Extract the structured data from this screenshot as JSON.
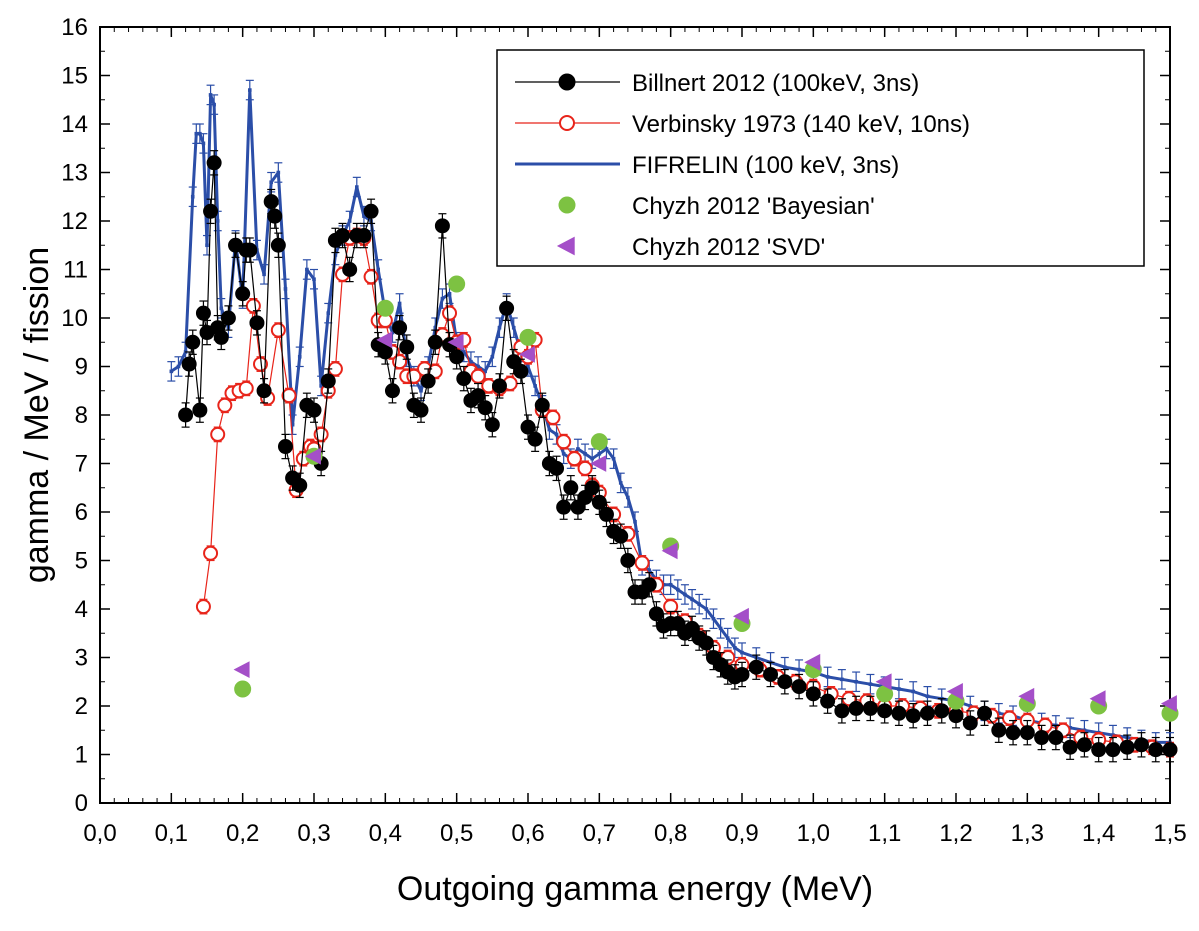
{
  "chart_data": {
    "type": "scatter",
    "xlabel": "Outgoing gamma energy (MeV)",
    "ylabel": "gamma / MeV / fission",
    "xlim": [
      0.0,
      1.5
    ],
    "ylim": [
      0,
      16
    ],
    "xticks": [
      "0,0",
      "0,1",
      "0,2",
      "0,3",
      "0,4",
      "0,5",
      "0,6",
      "0,7",
      "0,8",
      "0,9",
      "1,0",
      "1,1",
      "1,2",
      "1,3",
      "1,4",
      "1,5"
    ],
    "xtick_values": [
      0.0,
      0.1,
      0.2,
      0.3,
      0.4,
      0.5,
      0.6,
      0.7,
      0.8,
      0.9,
      1.0,
      1.1,
      1.2,
      1.3,
      1.4,
      1.5
    ],
    "yticks": [
      "0",
      "1",
      "2",
      "3",
      "4",
      "5",
      "6",
      "7",
      "8",
      "9",
      "10",
      "11",
      "12",
      "13",
      "14",
      "15",
      "16"
    ],
    "ytick_values": [
      0,
      1,
      2,
      3,
      4,
      5,
      6,
      7,
      8,
      9,
      10,
      11,
      12,
      13,
      14,
      15,
      16
    ],
    "legend_position": "top-right",
    "series": [
      {
        "name": "Billnert 2012  (100keV, 3ns)",
        "color": "#000000",
        "marker": "filled-circle",
        "line": true,
        "x": [
          0.12,
          0.125,
          0.13,
          0.14,
          0.145,
          0.15,
          0.155,
          0.16,
          0.165,
          0.17,
          0.18,
          0.19,
          0.2,
          0.205,
          0.21,
          0.22,
          0.23,
          0.24,
          0.245,
          0.25,
          0.26,
          0.27,
          0.28,
          0.29,
          0.3,
          0.31,
          0.32,
          0.33,
          0.34,
          0.35,
          0.36,
          0.37,
          0.38,
          0.39,
          0.4,
          0.41,
          0.42,
          0.43,
          0.44,
          0.45,
          0.46,
          0.47,
          0.48,
          0.49,
          0.5,
          0.51,
          0.52,
          0.53,
          0.54,
          0.55,
          0.56,
          0.57,
          0.58,
          0.59,
          0.6,
          0.61,
          0.62,
          0.63,
          0.64,
          0.65,
          0.66,
          0.67,
          0.68,
          0.69,
          0.7,
          0.71,
          0.72,
          0.73,
          0.74,
          0.75,
          0.76,
          0.77,
          0.78,
          0.79,
          0.8,
          0.81,
          0.82,
          0.83,
          0.84,
          0.85,
          0.86,
          0.87,
          0.88,
          0.89,
          0.9,
          0.92,
          0.94,
          0.96,
          0.98,
          1.0,
          1.02,
          1.04,
          1.06,
          1.08,
          1.1,
          1.12,
          1.14,
          1.16,
          1.18,
          1.2,
          1.22,
          1.24,
          1.26,
          1.28,
          1.3,
          1.32,
          1.34,
          1.36,
          1.38,
          1.4,
          1.42,
          1.44,
          1.46,
          1.48,
          1.5
        ],
        "y": [
          8.0,
          9.05,
          9.5,
          8.1,
          10.1,
          9.7,
          12.2,
          13.2,
          9.8,
          9.6,
          10.0,
          11.5,
          10.5,
          11.4,
          11.4,
          9.9,
          8.5,
          12.4,
          12.1,
          11.5,
          7.35,
          6.7,
          6.55,
          8.2,
          8.1,
          7.0,
          8.7,
          11.6,
          11.7,
          11.0,
          11.7,
          11.7,
          12.2,
          9.45,
          9.3,
          8.5,
          9.8,
          9.4,
          8.2,
          8.1,
          8.7,
          9.5,
          11.9,
          9.45,
          9.2,
          8.75,
          8.3,
          8.4,
          8.15,
          7.8,
          8.6,
          10.2,
          9.1,
          8.9,
          7.75,
          7.5,
          8.2,
          7.0,
          6.9,
          6.1,
          6.5,
          6.1,
          6.3,
          6.5,
          6.2,
          5.95,
          5.6,
          5.5,
          5.0,
          4.35,
          4.35,
          4.5,
          3.9,
          3.65,
          3.7,
          3.7,
          3.5,
          3.6,
          3.4,
          3.3,
          3.0,
          2.85,
          2.7,
          2.6,
          2.65,
          2.8,
          2.65,
          2.5,
          2.4,
          2.25,
          2.1,
          1.9,
          1.95,
          1.95,
          1.9,
          1.85,
          1.8,
          1.85,
          1.9,
          1.8,
          1.65,
          1.85,
          1.5,
          1.45,
          1.45,
          1.35,
          1.35,
          1.15,
          1.2,
          1.1,
          1.1,
          1.15,
          1.2,
          1.1,
          1.1
        ]
      },
      {
        "name": "Verbinsky 1973  (140 keV, 10ns)",
        "color": "#e8241a",
        "marker": "open-circle",
        "line": true,
        "x": [
          0.145,
          0.155,
          0.165,
          0.175,
          0.185,
          0.195,
          0.205,
          0.215,
          0.225,
          0.235,
          0.25,
          0.265,
          0.275,
          0.285,
          0.295,
          0.3,
          0.31,
          0.32,
          0.33,
          0.34,
          0.35,
          0.36,
          0.37,
          0.38,
          0.39,
          0.4,
          0.41,
          0.42,
          0.43,
          0.44,
          0.455,
          0.47,
          0.48,
          0.49,
          0.5,
          0.51,
          0.52,
          0.53,
          0.545,
          0.56,
          0.575,
          0.59,
          0.6,
          0.61,
          0.62,
          0.635,
          0.65,
          0.665,
          0.68,
          0.69,
          0.7,
          0.72,
          0.74,
          0.76,
          0.78,
          0.8,
          0.82,
          0.84,
          0.86,
          0.88,
          0.9,
          0.925,
          0.95,
          0.975,
          1.0,
          1.025,
          1.05,
          1.075,
          1.1,
          1.125,
          1.15,
          1.175,
          1.2,
          1.225,
          1.25,
          1.275,
          1.3,
          1.325,
          1.35,
          1.375,
          1.4,
          1.425,
          1.45,
          1.475,
          1.5
        ],
        "y": [
          4.05,
          5.15,
          7.6,
          8.2,
          8.45,
          8.5,
          8.55,
          10.25,
          9.05,
          8.35,
          9.75,
          8.4,
          6.45,
          7.1,
          7.35,
          7.3,
          7.6,
          8.5,
          8.95,
          10.9,
          11.65,
          11.7,
          11.65,
          10.85,
          9.95,
          9.95,
          9.3,
          9.1,
          8.8,
          8.8,
          8.95,
          8.9,
          9.65,
          10.1,
          9.5,
          9.55,
          8.9,
          8.8,
          8.6,
          8.55,
          8.65,
          9.4,
          9.2,
          9.55,
          8.1,
          7.95,
          7.45,
          7.1,
          6.9,
          6.55,
          6.4,
          5.95,
          5.55,
          4.95,
          4.5,
          4.05,
          3.75,
          3.45,
          3.2,
          3.0,
          2.85,
          2.75,
          2.6,
          2.5,
          2.4,
          2.25,
          2.15,
          2.1,
          2.0,
          2.0,
          1.95,
          1.9,
          1.9,
          1.85,
          1.8,
          1.75,
          1.7,
          1.6,
          1.5,
          1.35,
          1.3,
          1.25,
          1.2,
          1.15,
          1.1
        ]
      },
      {
        "name": "FIFRELIN (100 keV, 3ns)",
        "color": "#2b4ea8",
        "marker": "none",
        "line": true,
        "x": [
          0.1,
          0.11,
          0.12,
          0.13,
          0.135,
          0.14,
          0.145,
          0.15,
          0.155,
          0.16,
          0.165,
          0.17,
          0.18,
          0.19,
          0.2,
          0.21,
          0.22,
          0.23,
          0.24,
          0.25,
          0.26,
          0.27,
          0.28,
          0.29,
          0.3,
          0.31,
          0.32,
          0.33,
          0.34,
          0.35,
          0.36,
          0.37,
          0.38,
          0.39,
          0.4,
          0.41,
          0.42,
          0.43,
          0.44,
          0.45,
          0.46,
          0.47,
          0.48,
          0.49,
          0.5,
          0.51,
          0.52,
          0.53,
          0.54,
          0.55,
          0.56,
          0.57,
          0.58,
          0.59,
          0.6,
          0.61,
          0.62,
          0.63,
          0.64,
          0.65,
          0.66,
          0.67,
          0.68,
          0.69,
          0.7,
          0.71,
          0.72,
          0.73,
          0.74,
          0.75,
          0.76,
          0.77,
          0.78,
          0.79,
          0.8,
          0.81,
          0.82,
          0.83,
          0.84,
          0.85,
          0.86,
          0.87,
          0.88,
          0.89,
          0.9,
          0.92,
          0.94,
          0.96,
          0.98,
          1.0,
          1.02,
          1.04,
          1.06,
          1.08,
          1.1,
          1.12,
          1.14,
          1.16,
          1.18,
          1.2,
          1.22,
          1.24,
          1.26,
          1.28,
          1.3,
          1.32,
          1.34,
          1.36,
          1.38,
          1.4,
          1.42,
          1.44,
          1.46,
          1.48,
          1.5
        ],
        "y": [
          8.9,
          9.0,
          9.3,
          12.5,
          13.8,
          13.8,
          13.6,
          11.5,
          14.6,
          14.4,
          12.0,
          10.2,
          9.8,
          11.6,
          10.4,
          14.7,
          11.4,
          10.9,
          12.8,
          13.0,
          10.6,
          7.8,
          9.2,
          11.0,
          10.8,
          8.6,
          10.1,
          11.3,
          11.7,
          12.0,
          12.7,
          12.1,
          12.0,
          11.0,
          10.1,
          9.7,
          10.3,
          9.2,
          8.8,
          8.5,
          9.0,
          9.8,
          10.4,
          10.5,
          9.5,
          9.3,
          9.1,
          9.0,
          8.9,
          9.2,
          9.8,
          10.3,
          9.8,
          9.3,
          9.0,
          8.6,
          8.2,
          7.7,
          7.6,
          7.2,
          7.1,
          7.3,
          7.2,
          7.1,
          7.2,
          7.3,
          7.1,
          6.6,
          6.3,
          5.8,
          4.9,
          4.8,
          4.6,
          4.5,
          4.5,
          4.4,
          4.3,
          4.2,
          4.1,
          4.0,
          3.8,
          3.6,
          3.4,
          3.2,
          3.1,
          3.0,
          2.9,
          2.8,
          2.75,
          2.7,
          2.6,
          2.55,
          2.5,
          2.45,
          2.4,
          2.35,
          2.3,
          2.2,
          2.15,
          2.1,
          2.0,
          1.9,
          1.85,
          1.8,
          1.7,
          1.65,
          1.6,
          1.55,
          1.5,
          1.45,
          1.4,
          1.35,
          1.3,
          1.25,
          1.25
        ]
      },
      {
        "name": "Chyzh 2012 'Bayesian'",
        "color": "#7dc242",
        "marker": "filled-circle",
        "line": false,
        "x": [
          0.2,
          0.3,
          0.4,
          0.5,
          0.6,
          0.7,
          0.8,
          0.9,
          1.0,
          1.1,
          1.2,
          1.3,
          1.4,
          1.5
        ],
        "y": [
          2.35,
          7.15,
          10.2,
          10.7,
          9.6,
          7.45,
          5.3,
          3.7,
          2.75,
          2.25,
          2.1,
          2.05,
          2.0,
          1.85
        ]
      },
      {
        "name": "Chyzh 2012 'SVD'",
        "color": "#a44fc8",
        "marker": "left-triangle",
        "line": false,
        "x": [
          0.2,
          0.3,
          0.4,
          0.5,
          0.6,
          0.7,
          0.8,
          0.9,
          1.0,
          1.1,
          1.2,
          1.3,
          1.4,
          1.5
        ],
        "y": [
          2.75,
          7.15,
          9.55,
          9.5,
          9.25,
          7.0,
          5.2,
          3.85,
          2.9,
          2.5,
          2.3,
          2.2,
          2.15,
          2.05
        ]
      }
    ]
  }
}
